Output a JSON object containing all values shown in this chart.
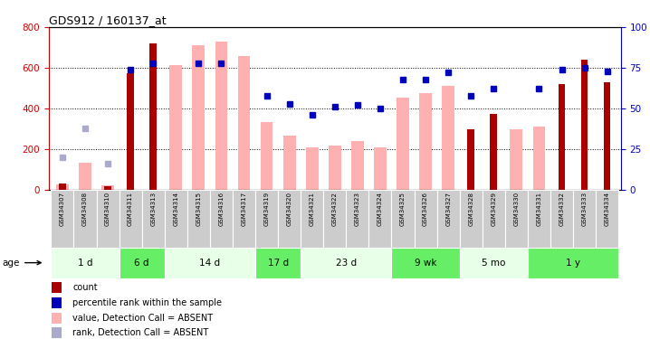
{
  "title": "GDS912 / 160137_at",
  "samples": [
    "GSM34307",
    "GSM34308",
    "GSM34310",
    "GSM34311",
    "GSM34313",
    "GSM34314",
    "GSM34315",
    "GSM34316",
    "GSM34317",
    "GSM34319",
    "GSM34320",
    "GSM34321",
    "GSM34322",
    "GSM34323",
    "GSM34324",
    "GSM34325",
    "GSM34326",
    "GSM34327",
    "GSM34328",
    "GSM34329",
    "GSM34330",
    "GSM34331",
    "GSM34332",
    "GSM34333",
    "GSM34334"
  ],
  "count_values": [
    30,
    null,
    20,
    575,
    720,
    null,
    null,
    null,
    null,
    null,
    null,
    null,
    null,
    null,
    null,
    null,
    null,
    null,
    300,
    375,
    null,
    null,
    520,
    640,
    530
  ],
  "pink_bar_values": [
    28,
    135,
    22,
    null,
    null,
    615,
    710,
    730,
    660,
    335,
    265,
    210,
    220,
    238,
    210,
    455,
    475,
    510,
    null,
    null,
    298,
    310,
    null,
    null,
    null
  ],
  "blue_pct_values": [
    null,
    null,
    null,
    74,
    78,
    null,
    78,
    78,
    null,
    58,
    53,
    46,
    51,
    52,
    50,
    68,
    68,
    72,
    58,
    62,
    null,
    62,
    74,
    75,
    73
  ],
  "lavender_pct_values": [
    20,
    38,
    16,
    null,
    null,
    null,
    null,
    null,
    null,
    null,
    null,
    null,
    null,
    null,
    null,
    null,
    null,
    null,
    null,
    null,
    null,
    null,
    null,
    null,
    null
  ],
  "age_groups": [
    {
      "label": "1 d",
      "start": 0,
      "end": 3
    },
    {
      "label": "6 d",
      "start": 3,
      "end": 5
    },
    {
      "label": "14 d",
      "start": 5,
      "end": 9
    },
    {
      "label": "17 d",
      "start": 9,
      "end": 11
    },
    {
      "label": "23 d",
      "start": 11,
      "end": 15
    },
    {
      "label": "9 wk",
      "start": 15,
      "end": 18
    },
    {
      "label": "5 mo",
      "start": 18,
      "end": 21
    },
    {
      "label": "1 y",
      "start": 21,
      "end": 25
    }
  ],
  "ylim_left": [
    0,
    800
  ],
  "ylim_right": [
    0,
    100
  ],
  "yticks_left": [
    0,
    200,
    400,
    600,
    800
  ],
  "yticks_right": [
    0,
    25,
    50,
    75,
    100
  ],
  "bar_color_dark": "#AA0000",
  "bar_color_pink": "#FFB0B0",
  "blue_color": "#0000BB",
  "lavender_color": "#AAAACC",
  "age_colors": [
    "#E8FFE8",
    "#66EE66",
    "#E8FFE8",
    "#66EE66",
    "#E8FFE8",
    "#66EE66",
    "#E8FFE8",
    "#66EE66"
  ],
  "sample_bg_color": "#CCCCCC",
  "legend_items": [
    {
      "label": "count",
      "color": "#AA0000"
    },
    {
      "label": "percentile rank within the sample",
      "color": "#0000BB"
    },
    {
      "label": "value, Detection Call = ABSENT",
      "color": "#FFB0B0"
    },
    {
      "label": "rank, Detection Call = ABSENT",
      "color": "#AAAACC"
    }
  ]
}
